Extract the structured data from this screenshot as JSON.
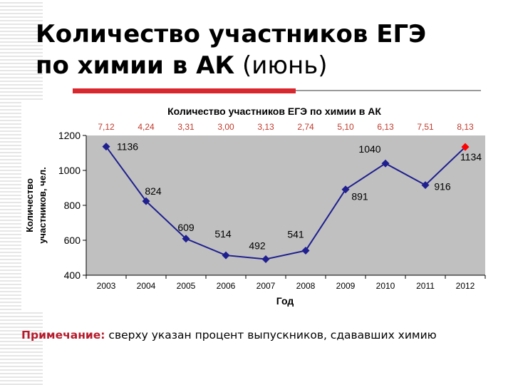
{
  "slide": {
    "title_bold_1": "Количество участников ЕГЭ",
    "title_bold_2": "по химии в АК",
    "title_normal": " (июнь)",
    "note_label": "Примечание:",
    "note_text": " сверху указан процент выпускников, сдававших химию"
  },
  "colors": {
    "accent_red": "#d8282e",
    "series_blue": "#1f1f8f",
    "highlight_red": "#ff0000",
    "percent_text": "#c0392b",
    "plot_bg": "#c0c0c0"
  },
  "chart_data": {
    "type": "line",
    "title": "Количество участников ЕГЭ по химии в АК",
    "xlabel": "Год",
    "ylabel_line1": "Количество",
    "ylabel_line2": "участников, чел.",
    "ylim": [
      400,
      1200
    ],
    "yticks": [
      "400",
      "600",
      "800",
      "1000",
      "1200"
    ],
    "grid": false,
    "categories": [
      "2003",
      "2004",
      "2005",
      "2006",
      "2007",
      "2008",
      "2009",
      "2010",
      "2011",
      "2012"
    ],
    "values": [
      1136,
      824,
      609,
      514,
      492,
      541,
      891,
      1040,
      916,
      1134
    ],
    "value_labels": [
      "1136",
      "824",
      "609",
      "514",
      "492",
      "541",
      "891",
      "1040",
      "916",
      "1134"
    ],
    "percent_labels": [
      "7,12",
      "4,24",
      "3,31",
      "3,00",
      "3,13",
      "2,74",
      "5,10",
      "6,13",
      "7,51",
      "8,13"
    ],
    "highlighted_category": "2012"
  }
}
